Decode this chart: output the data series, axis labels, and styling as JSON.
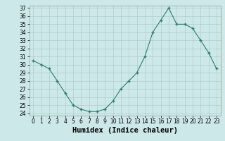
{
  "x": [
    0,
    1,
    2,
    3,
    4,
    5,
    6,
    7,
    8,
    9,
    10,
    11,
    12,
    13,
    14,
    15,
    16,
    17,
    18,
    19,
    20,
    21,
    22,
    23
  ],
  "y": [
    30.5,
    30.0,
    29.5,
    28.0,
    26.5,
    25.0,
    24.5,
    24.2,
    24.2,
    24.5,
    25.5,
    27.0,
    28.0,
    29.0,
    31.0,
    34.0,
    35.5,
    37.0,
    35.0,
    35.0,
    34.5,
    33.0,
    31.5,
    29.5
  ],
  "line_color": "#2e7d6e",
  "marker": "+",
  "marker_size": 4,
  "bg_color": "#cce8e8",
  "grid_color": "#b0cccc",
  "xlabel": "Humidex (Indice chaleur)",
  "ylim_min": 23.7,
  "ylim_max": 37.3,
  "xlim_min": -0.5,
  "xlim_max": 23.5,
  "yticks": [
    24,
    25,
    26,
    27,
    28,
    29,
    30,
    31,
    32,
    33,
    34,
    35,
    36,
    37
  ],
  "xticks": [
    0,
    1,
    2,
    3,
    4,
    5,
    6,
    7,
    8,
    9,
    10,
    11,
    12,
    13,
    14,
    15,
    16,
    17,
    18,
    19,
    20,
    21,
    22,
    23
  ],
  "tick_fontsize": 5.5,
  "label_fontsize": 7.5,
  "linewidth": 0.8,
  "marker_size_pt": 3.5
}
